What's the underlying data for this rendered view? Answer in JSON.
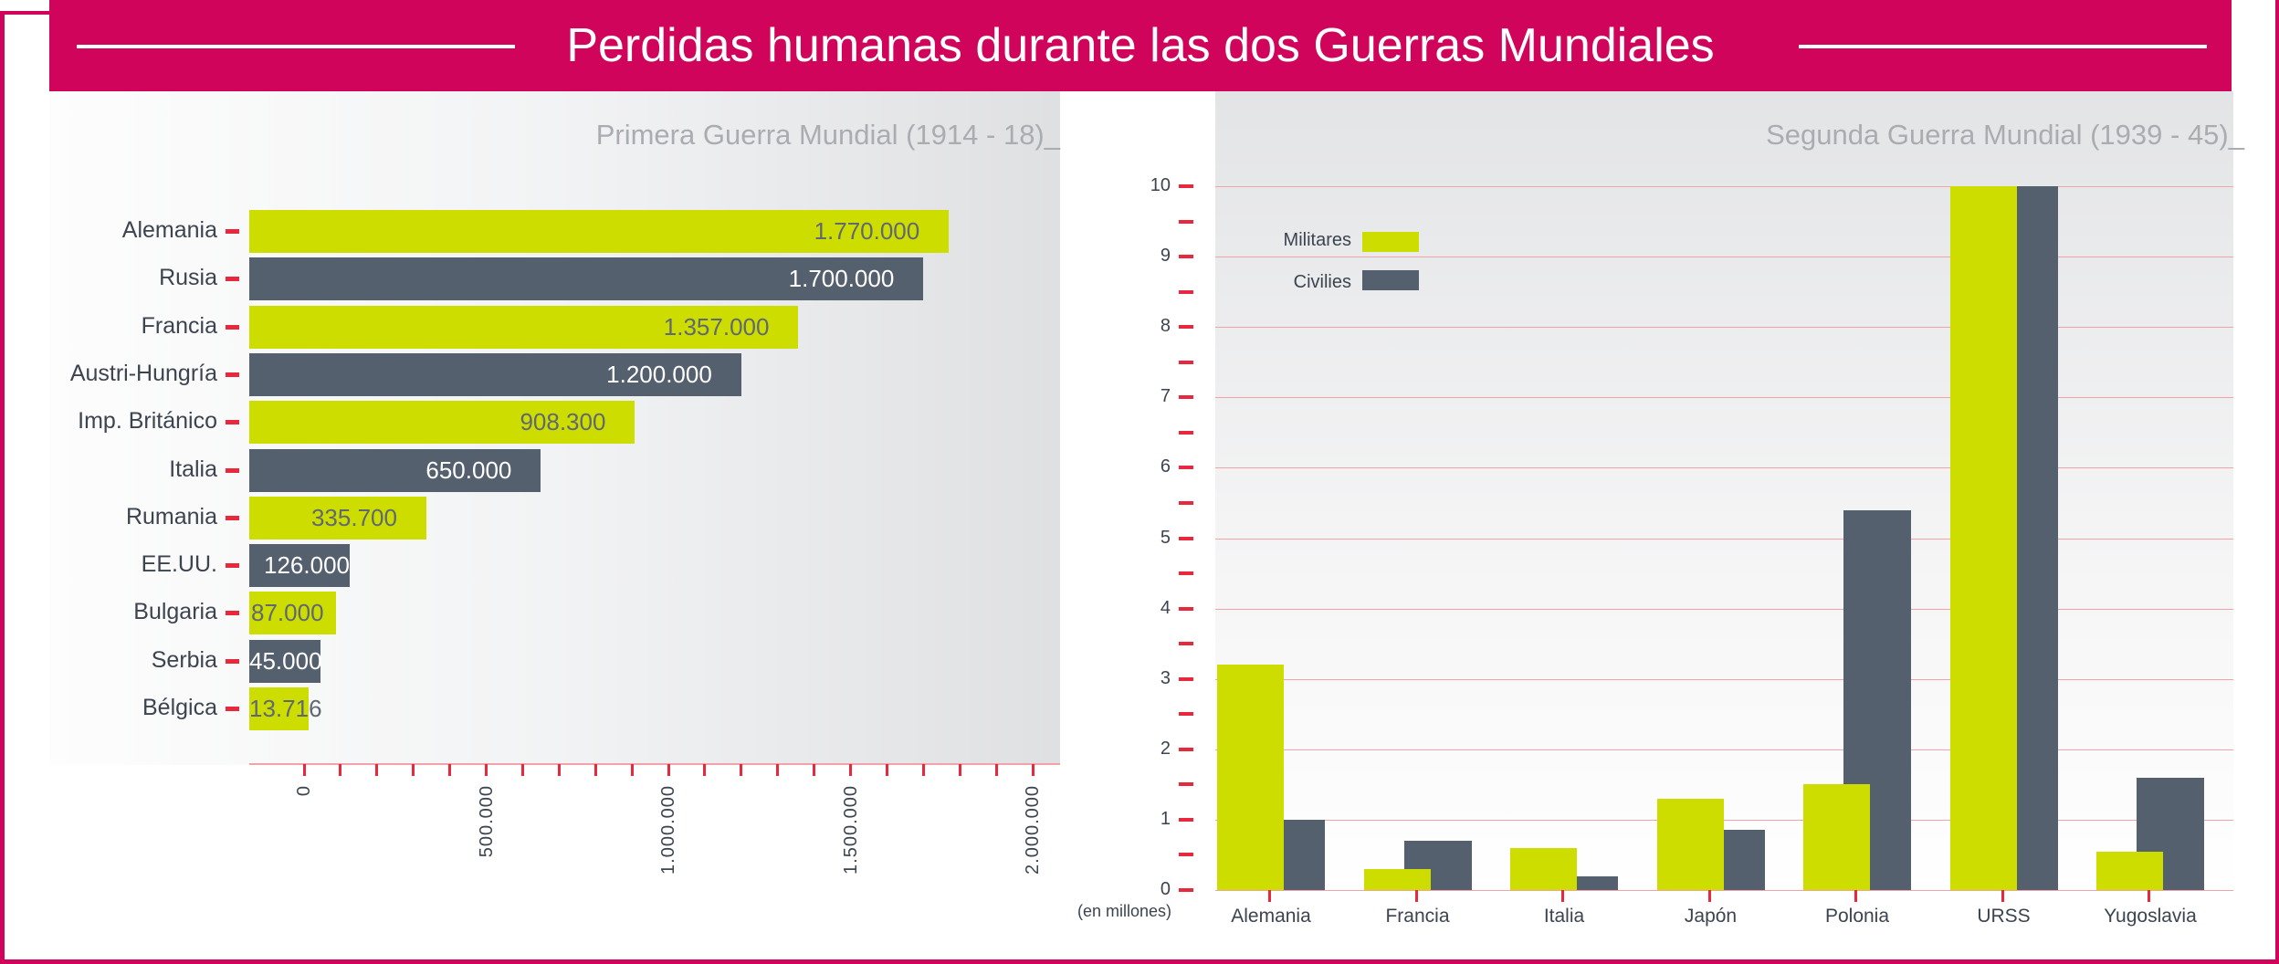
{
  "title": "Perdidas humanas durante las dos Guerras Mundiales",
  "colors": {
    "brand": "#d0045a",
    "green": "#cddd00",
    "dark": "#55606e",
    "tick": "#e8283c",
    "grid": "#f1a3aa"
  },
  "chart_data": [
    {
      "type": "bar",
      "orientation": "horizontal",
      "title": "Primera Guerra Mundial (1914 - 18)_",
      "categories": [
        "Alemania",
        "Rusia",
        "Francia",
        "Austri-Hungría",
        "Imp. Británico",
        "Italia",
        "Rumania",
        "EE.UU.",
        "Bulgaria",
        "Serbia",
        "Bélgica"
      ],
      "values": [
        1770000,
        1700000,
        1357000,
        1200000,
        908300,
        650000,
        335700,
        126000,
        87000,
        45000,
        13716
      ],
      "value_labels": [
        "1.770.000",
        "1.700.000",
        "1.357.000",
        "1.200.000",
        "908.300",
        "650.000",
        "335.700",
        "126.000",
        "87.000",
        "45.000",
        "13.716"
      ],
      "xlim": [
        0,
        2000000
      ],
      "x_ticks": [
        0,
        500000,
        1000000,
        1500000,
        2000000
      ],
      "x_tick_labels": [
        "0",
        "500.000",
        "1.000.000",
        "1.500.000",
        "2.000.000"
      ],
      "bar_colors": "alternating green / dark"
    },
    {
      "type": "bar",
      "title": "Segunda Guerra Mundial (1939 - 45)_",
      "ylabel": "(en millones)",
      "categories": [
        "Alemania",
        "Francia",
        "Italia",
        "Japón",
        "Polonia",
        "URSS",
        "Yugoslavia"
      ],
      "series": [
        {
          "name": "Militares",
          "color": "#cddd00",
          "values": [
            3.2,
            0.3,
            0.6,
            1.3,
            1.5,
            10,
            0.55
          ]
        },
        {
          "name": "Civilies",
          "color": "#55606e",
          "values": [
            1.0,
            0.7,
            0.2,
            0.85,
            5.4,
            10,
            1.6
          ]
        }
      ],
      "ylim": [
        0,
        10
      ],
      "y_ticks": [
        "0",
        "1",
        "2",
        "3",
        "4",
        "5",
        "6",
        "7",
        "8",
        "9",
        "10"
      ],
      "grid": true,
      "legend": "top-left"
    }
  ]
}
